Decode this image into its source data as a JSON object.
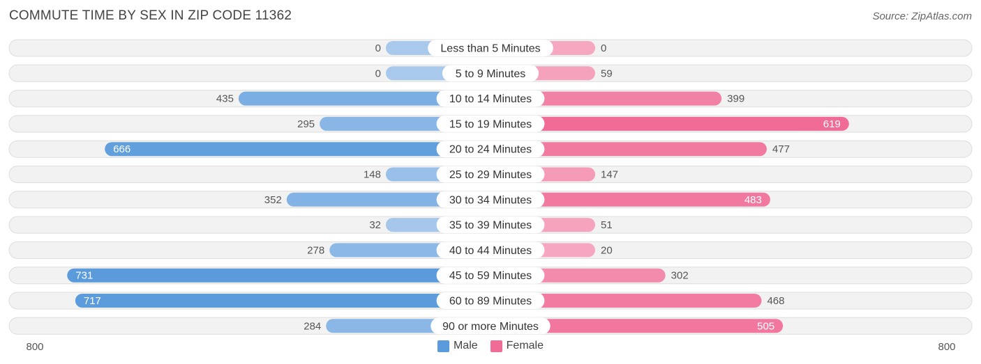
{
  "title": "COMMUTE TIME BY SEX IN ZIP CODE 11362",
  "source": "Source: ZipAtlas.com",
  "colors": {
    "male_dark": "#5b9bdc",
    "male_light": "#a9c9ec",
    "female_dark": "#f06c97",
    "female_light": "#f6a8c1"
  },
  "legend": {
    "male": "Male",
    "female": "Female"
  },
  "chart_data": {
    "type": "bar",
    "orientation": "horizontal-diverging",
    "categories": [
      "Less than 5 Minutes",
      "5 to 9 Minutes",
      "10 to 14 Minutes",
      "15 to 19 Minutes",
      "20 to 24 Minutes",
      "25 to 29 Minutes",
      "30 to 34 Minutes",
      "35 to 39 Minutes",
      "40 to 44 Minutes",
      "45 to 59 Minutes",
      "60 to 89 Minutes",
      "90 or more Minutes"
    ],
    "series": [
      {
        "name": "Male",
        "values": [
          0,
          0,
          435,
          295,
          666,
          148,
          352,
          32,
          278,
          731,
          717,
          284
        ]
      },
      {
        "name": "Female",
        "values": [
          0,
          59,
          399,
          619,
          477,
          147,
          483,
          51,
          20,
          302,
          468,
          505
        ]
      }
    ],
    "axis_min_label": "800",
    "axis_max_label": "800",
    "xlim": [
      -800,
      800
    ],
    "legend_position": "bottom-center"
  }
}
